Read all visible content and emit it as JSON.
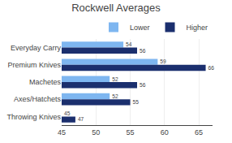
{
  "chart_data": {
    "type": "bar",
    "orientation": "horizontal",
    "title": "Rockwell Averages",
    "categories": [
      "Everyday Carry",
      "Premium Knives",
      "Machetes",
      "Axes/Hatchets",
      "Throwing Knives"
    ],
    "series": [
      {
        "name": "Lower",
        "color": "#7EB6F0",
        "values": [
          54,
          59,
          52,
          52,
          45
        ]
      },
      {
        "name": "Higher",
        "color": "#1B2F6E",
        "values": [
          56,
          66,
          56,
          55,
          47
        ]
      }
    ],
    "xlim": [
      45,
      67
    ],
    "xticks": [
      45,
      50,
      55,
      60,
      65
    ],
    "grid": true,
    "legend": "upper right",
    "data_labels": true
  }
}
